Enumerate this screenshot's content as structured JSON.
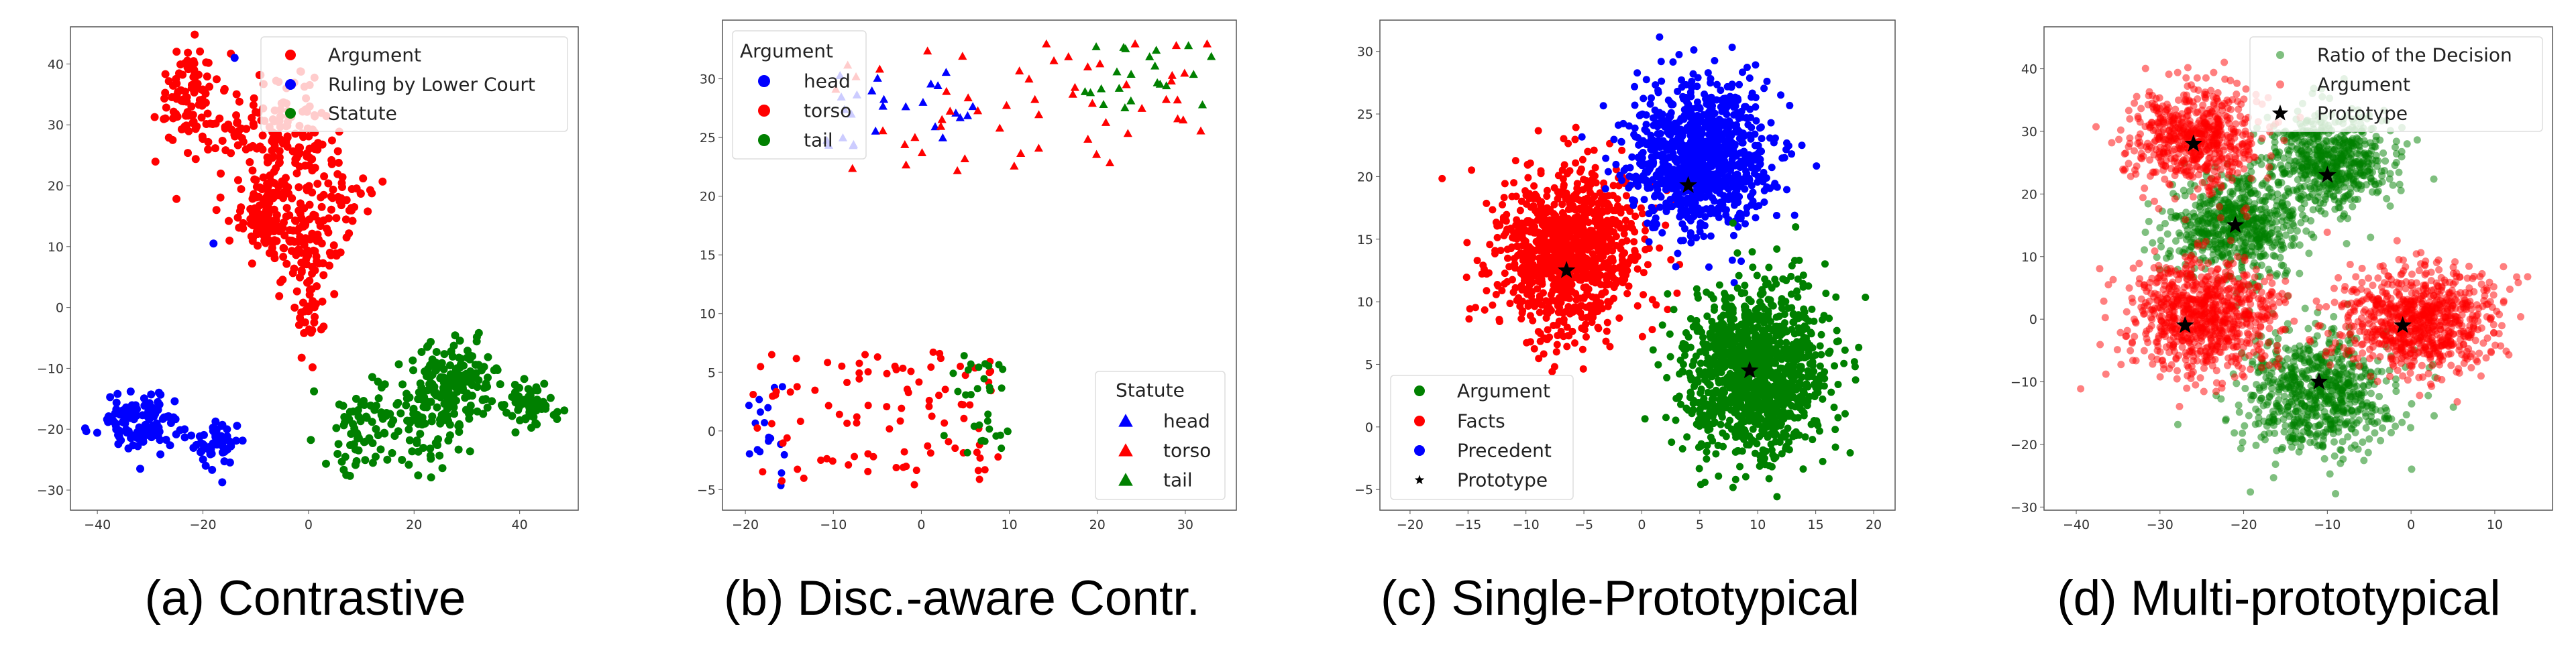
{
  "chart_data": [
    {
      "type": "scatter",
      "caption": "(a) Contrastive",
      "xlim": [
        -45.1,
        51.1
      ],
      "ylim": [
        -33.3,
        46.1
      ],
      "xticks": [
        -40,
        -20,
        0,
        20,
        40
      ],
      "yticks": [
        -30,
        -20,
        -10,
        0,
        10,
        20,
        30,
        40
      ],
      "grid": false,
      "legends": [
        {
          "title": null,
          "position": "top-right",
          "entries": [
            {
              "label": "Argument",
              "color": "#ff0000",
              "marker": "circle"
            },
            {
              "label": "Ruling by Lower Court",
              "color": "#0000ff",
              "marker": "circle"
            },
            {
              "label": "Statute",
              "color": "#008000",
              "marker": "circle"
            }
          ]
        }
      ],
      "series": [
        {
          "name": "Argument",
          "color": "#ff0000",
          "marker": "circle",
          "alpha": 1,
          "clusters": [
            {
              "c": [
                -23,
                35
              ],
              "s": [
                3,
                4
              ],
              "n": 90
            },
            {
              "c": [
                -12,
                28
              ],
              "s": [
                5,
                5
              ],
              "n": 80
            },
            {
              "c": [
                -3,
                26
              ],
              "s": [
                4,
                5
              ],
              "n": 120
            },
            {
              "c": [
                -8,
                15
              ],
              "s": [
                3,
                3
              ],
              "n": 100
            },
            {
              "c": [
                0,
                11
              ],
              "s": [
                3,
                4
              ],
              "n": 100
            },
            {
              "c": [
                7,
                18
              ],
              "s": [
                3,
                3
              ],
              "n": 30
            },
            {
              "c": [
                0,
                -1
              ],
              "s": [
                1.5,
                3
              ],
              "n": 30
            }
          ]
        },
        {
          "name": "Ruling by Lower Court",
          "color": "#0000ff",
          "marker": "circle",
          "alpha": 1,
          "clusters": [
            {
              "c": [
                -32,
                -19
              ],
              "s": [
                4,
                2.5
              ],
              "n": 120
            },
            {
              "c": [
                -17,
                -22
              ],
              "s": [
                2.5,
                2
              ],
              "n": 50
            }
          ],
          "points": [
            [
              -14,
              41
            ],
            [
              -18,
              10.5
            ]
          ]
        },
        {
          "name": "Statute",
          "color": "#008000",
          "marker": "circle",
          "alpha": 1,
          "clusters": [
            {
              "c": [
                10,
                -20
              ],
              "s": [
                3,
                4
              ],
              "n": 60
            },
            {
              "c": [
                22,
                -18
              ],
              "s": [
                4,
                4
              ],
              "n": 100
            },
            {
              "c": [
                28,
                -12
              ],
              "s": [
                4,
                3
              ],
              "n": 150
            },
            {
              "c": [
                42,
                -16
              ],
              "s": [
                2.5,
                2
              ],
              "n": 60
            }
          ]
        }
      ]
    },
    {
      "type": "scatter",
      "caption": "(b) Disc.-aware Contr.",
      "xlim": [
        -22.6,
        35.8
      ],
      "ylim": [
        -6.75,
        35
      ],
      "xticks": [
        -20,
        -10,
        0,
        10,
        20,
        30
      ],
      "yticks": [
        -5,
        0,
        5,
        10,
        15,
        20,
        25,
        30
      ],
      "grid": false,
      "legends": [
        {
          "title": "Argument",
          "position": "top-left",
          "entries": [
            {
              "label": "head",
              "color": "#0000ff",
              "marker": "circle"
            },
            {
              "label": "torso",
              "color": "#ff0000",
              "marker": "circle"
            },
            {
              "label": "tail",
              "color": "#008000",
              "marker": "circle"
            }
          ]
        },
        {
          "title": "Statute",
          "position": "lower-right",
          "entries": [
            {
              "label": "head",
              "color": "#0000ff",
              "marker": "triangle"
            },
            {
              "label": "torso",
              "color": "#ff0000",
              "marker": "triangle"
            },
            {
              "label": "tail",
              "color": "#008000",
              "marker": "triangle"
            }
          ]
        }
      ],
      "series": [
        {
          "name": "Argument head",
          "color": "#0000ff",
          "marker": "circle",
          "alpha": 1,
          "clusters": [
            {
              "box": [
                -20,
                -15.5,
                -4.8,
                4
              ],
              "n": 18
            }
          ]
        },
        {
          "name": "Argument torso",
          "color": "#ff0000",
          "marker": "circle",
          "alpha": 1,
          "clusters": [
            {
              "box": [
                -19.5,
                9.5,
                -4.8,
                7
              ],
              "n": 95
            }
          ]
        },
        {
          "name": "Argument tail",
          "color": "#008000",
          "marker": "circle",
          "alpha": 1,
          "clusters": [
            {
              "box": [
                2.5,
                10,
                -2,
                6.5
              ],
              "n": 32
            }
          ]
        },
        {
          "name": "Statute head",
          "color": "#0000ff",
          "marker": "triangle",
          "alpha": 1,
          "clusters": [
            {
              "box": [
                -11,
                6,
                24.3,
                31
              ],
              "n": 26
            }
          ]
        },
        {
          "name": "Statute torso",
          "color": "#ff0000",
          "marker": "triangle",
          "alpha": 1,
          "clusters": [
            {
              "box": [
                -10,
                33,
                22,
                33
              ],
              "n": 55
            }
          ]
        },
        {
          "name": "Statute tail",
          "color": "#008000",
          "marker": "triangle",
          "alpha": 1,
          "clusters": [
            {
              "box": [
                18.5,
                33,
                27.5,
                33
              ],
              "n": 22
            }
          ]
        }
      ]
    },
    {
      "type": "scatter",
      "caption": "(c) Single-Prototypical",
      "xlim": [
        -22.6,
        21.85
      ],
      "ylim": [
        -6.65,
        32.5
      ],
      "xticks": [
        -20,
        -15,
        -10,
        -5,
        0,
        5,
        10,
        15,
        20
      ],
      "yticks": [
        -5,
        0,
        5,
        10,
        15,
        20,
        25,
        30
      ],
      "grid": false,
      "legends": [
        {
          "title": null,
          "position": "lower-left",
          "entries": [
            {
              "label": "Argument",
              "color": "#008000",
              "marker": "circle"
            },
            {
              "label": "Facts",
              "color": "#ff0000",
              "marker": "circle"
            },
            {
              "label": "Precedent",
              "color": "#0000ff",
              "marker": "circle"
            },
            {
              "label": "Prototype",
              "color": "#000000",
              "marker": "star-small"
            }
          ]
        }
      ],
      "series": [
        {
          "name": "Facts",
          "color": "#ff0000",
          "marker": "circle",
          "alpha": 1,
          "clusters": [
            {
              "c": [
                -6.5,
                14
              ],
              "s": [
                3.3,
                3.3
              ],
              "n": 1000
            }
          ]
        },
        {
          "name": "Precedent",
          "color": "#0000ff",
          "marker": "circle",
          "alpha": 1,
          "clusters": [
            {
              "c": [
                5,
                21.5
              ],
              "s": [
                3,
                3
              ],
              "n": 1000
            }
          ]
        },
        {
          "name": "Argument",
          "color": "#008000",
          "marker": "circle",
          "alpha": 1,
          "clusters": [
            {
              "c": [
                10,
                4.5
              ],
              "s": [
                3,
                3.3
              ],
              "n": 1200
            }
          ]
        },
        {
          "name": "Prototype",
          "color": "#000000",
          "marker": "star",
          "alpha": 1,
          "points": [
            [
              -6.5,
              12.5
            ],
            [
              4,
              19.3
            ],
            [
              9.3,
              4.5
            ]
          ]
        }
      ]
    },
    {
      "type": "scatter",
      "caption": "(d) Multi-prototypical",
      "xlim": [
        -43.85,
        16.9
      ],
      "ylim": [
        -30.5,
        46.7
      ],
      "xticks": [
        -40,
        -30,
        -20,
        -10,
        0,
        10
      ],
      "yticks": [
        -30,
        -20,
        -10,
        0,
        10,
        20,
        30,
        40
      ],
      "grid": false,
      "legends": [
        {
          "title": null,
          "position": "top-right",
          "entries": [
            {
              "label": "Ratio of the Decision",
              "color": "#008000",
              "marker": "circle-alpha"
            },
            {
              "label": "Argument",
              "color": "#ff0000",
              "marker": "circle-alpha"
            },
            {
              "label": "Prototype",
              "color": "#000000",
              "marker": "star"
            }
          ]
        }
      ],
      "series": [
        {
          "name": "Ratio of the Decision",
          "color": "#008000",
          "marker": "circle",
          "alpha": 0.5,
          "clusters": [
            {
              "c": [
                -11,
                -12
              ],
              "s": [
                4.5,
                5
              ],
              "n": 700
            },
            {
              "c": [
                -21,
                15
              ],
              "s": [
                4,
                4
              ],
              "n": 600
            },
            {
              "c": [
                -10,
                25
              ],
              "s": [
                4,
                4
              ],
              "n": 600
            }
          ]
        },
        {
          "name": "Argument",
          "color": "#ff0000",
          "marker": "circle",
          "alpha": 0.5,
          "clusters": [
            {
              "c": [
                -26,
                29
              ],
              "s": [
                4,
                4
              ],
              "n": 600
            },
            {
              "c": [
                -25,
                1
              ],
              "s": [
                4.5,
                4.5
              ],
              "n": 800
            },
            {
              "c": [
                1,
                0
              ],
              "s": [
                4.5,
                4
              ],
              "n": 800
            }
          ]
        },
        {
          "name": "Prototype",
          "color": "#000000",
          "marker": "star",
          "alpha": 1,
          "points": [
            [
              -26,
              28
            ],
            [
              -21,
              15
            ],
            [
              -10,
              23
            ],
            [
              -27,
              -1
            ],
            [
              -1,
              -1
            ],
            [
              -11,
              -10
            ]
          ]
        }
      ]
    }
  ]
}
